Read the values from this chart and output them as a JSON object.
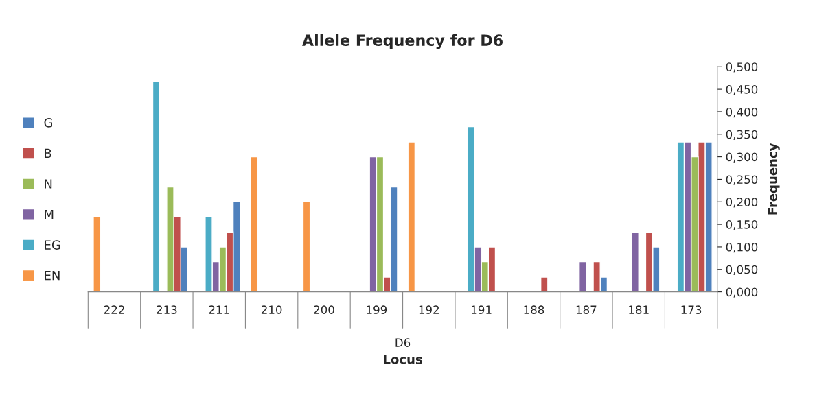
{
  "chart_data": {
    "type": "bar",
    "title": "Allele Frequency for D6",
    "xlabel": "Locus",
    "ylabel": "Frequency",
    "categories": [
      "222",
      "213",
      "211",
      "210",
      "200",
      "199",
      "192",
      "191",
      "188",
      "187",
      "181",
      "173"
    ],
    "series": [
      {
        "name": "G",
        "color": "#4f81bd",
        "values": [
          null,
          0.1,
          0.2,
          null,
          null,
          0.233,
          null,
          null,
          null,
          0.033,
          0.1,
          0.333
        ]
      },
      {
        "name": "B",
        "color": "#c0504d",
        "values": [
          null,
          0.167,
          0.133,
          null,
          null,
          0.033,
          null,
          0.1,
          0.033,
          0.067,
          0.133,
          0.333
        ]
      },
      {
        "name": "N",
        "color": "#9bbb59",
        "values": [
          null,
          0.233,
          0.1,
          null,
          null,
          0.3,
          null,
          0.067,
          null,
          null,
          null,
          0.3
        ]
      },
      {
        "name": "M",
        "color": "#8064a2",
        "values": [
          null,
          null,
          0.067,
          null,
          null,
          0.3,
          null,
          0.1,
          null,
          0.067,
          0.133,
          0.333
        ]
      },
      {
        "name": "EG",
        "color": "#4bacc6",
        "values": [
          null,
          0.467,
          0.167,
          null,
          null,
          null,
          null,
          0.367,
          null,
          null,
          null,
          0.333
        ]
      },
      {
        "name": "EN",
        "color": "#f79646",
        "values": [
          0.167,
          null,
          null,
          0.3,
          0.2,
          null,
          0.333,
          null,
          null,
          null,
          null,
          null
        ]
      }
    ],
    "ylim": [
      0,
      0.5
    ],
    "yticks": [
      {
        "value": 0,
        "label": "0,000"
      },
      {
        "value": 0.05,
        "label": "0,050"
      },
      {
        "value": 0.1,
        "label": "0,100"
      },
      {
        "value": 0.15,
        "label": "0,150"
      },
      {
        "value": 0.2,
        "label": "0,200"
      },
      {
        "value": 0.25,
        "label": "0,250"
      },
      {
        "value": 0.3,
        "label": "0,300"
      },
      {
        "value": 0.35,
        "label": "0,350"
      },
      {
        "value": 0.4,
        "label": "0,400"
      },
      {
        "value": 0.45,
        "label": "0,450"
      },
      {
        "value": 0.5,
        "label": "0,500"
      }
    ],
    "annotations": [
      "D6"
    ],
    "grid": false,
    "legend": "left"
  }
}
